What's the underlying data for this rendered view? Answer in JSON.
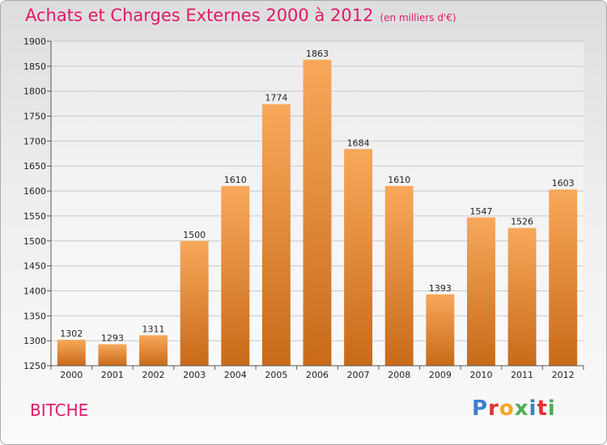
{
  "title": "Achats et Charges Externes 2000 à 2012",
  "unit_note": "(en milliers d'€)",
  "location": "BITCHE",
  "brand": {
    "text": "Proxiti",
    "letter_colors": [
      "#3b7fd0",
      "#e53030",
      "#f5a623",
      "#4caf50",
      "#3b7fd0",
      "#e53030",
      "#4caf50"
    ]
  },
  "colors": {
    "title": "#e0196a",
    "bar_light": "#f8a85a",
    "bar_dark": "#c86a1a",
    "grid": "#c8c8c8"
  },
  "chart_data": {
    "type": "bar",
    "categories": [
      "2000",
      "2001",
      "2002",
      "2003",
      "2004",
      "2005",
      "2006",
      "2007",
      "2008",
      "2009",
      "2010",
      "2011",
      "2012"
    ],
    "values": [
      1302,
      1293,
      1311,
      1500,
      1610,
      1774,
      1863,
      1684,
      1610,
      1393,
      1547,
      1526,
      1603
    ],
    "ylim": [
      1250,
      1900
    ],
    "yticks": [
      1250,
      1300,
      1350,
      1400,
      1450,
      1500,
      1550,
      1600,
      1650,
      1700,
      1750,
      1800,
      1850,
      1900
    ],
    "grid": true,
    "legend": "none",
    "xlabel": "",
    "ylabel": ""
  }
}
